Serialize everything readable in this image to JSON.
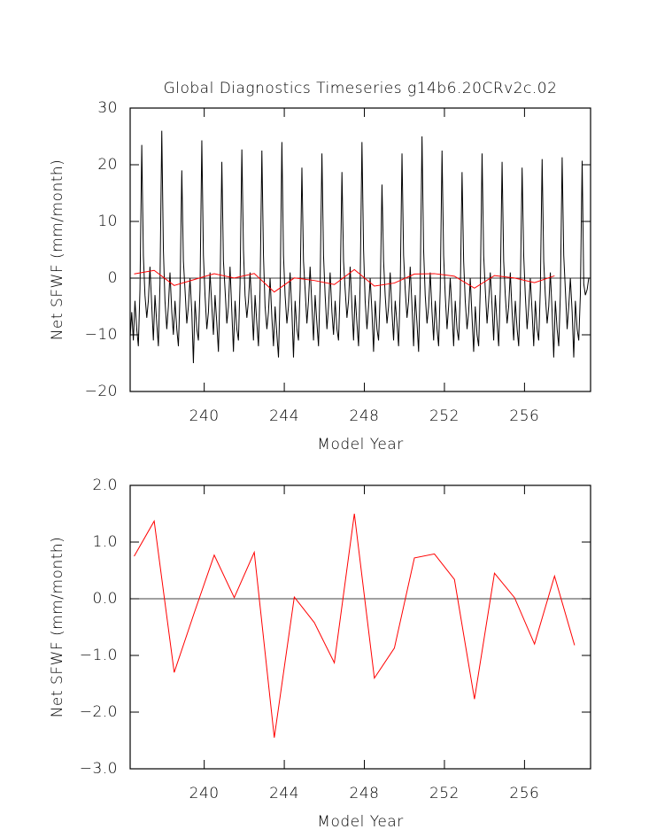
{
  "chart_data": [
    {
      "type": "line",
      "title": "Global Diagnostics Timeseries g14b6.20CRv2c.02",
      "xlabel": "Model Year",
      "ylabel": "Net SFWF (mm/month)",
      "xlim": [
        236.3,
        259.3
      ],
      "ylim": [
        -20,
        30
      ],
      "xticks": [
        240,
        244,
        248,
        252,
        256
      ],
      "yticks": [
        {
          "value": -20,
          "label": "−20"
        },
        {
          "value": -10,
          "label": "−10"
        },
        0,
        10,
        20,
        30
      ],
      "reference_line": 0,
      "series": [
        {
          "color": "#000000",
          "x": [
            236.29,
            236.38,
            236.46,
            236.54,
            236.63,
            236.71,
            236.79,
            236.88,
            236.96,
            237.04,
            237.13,
            237.21,
            237.29,
            237.38,
            237.46,
            237.54,
            237.63,
            237.71,
            237.79,
            237.88,
            237.96,
            238.04,
            238.13,
            238.21,
            238.29,
            238.38,
            238.46,
            238.54,
            238.63,
            238.71,
            238.79,
            238.88,
            238.96,
            239.04,
            239.13,
            239.21,
            239.29,
            239.38,
            239.46,
            239.54,
            239.63,
            239.71,
            239.79,
            239.88,
            239.96,
            240.04,
            240.13,
            240.21,
            240.29,
            240.38,
            240.46,
            240.54,
            240.63,
            240.71,
            240.79,
            240.88,
            240.96,
            241.04,
            241.13,
            241.21,
            241.29,
            241.38,
            241.46,
            241.54,
            241.63,
            241.71,
            241.79,
            241.88,
            241.96,
            242.04,
            242.13,
            242.21,
            242.29,
            242.38,
            242.46,
            242.54,
            242.63,
            242.71,
            242.79,
            242.88,
            242.96,
            243.04,
            243.13,
            243.21,
            243.29,
            243.38,
            243.46,
            243.54,
            243.63,
            243.71,
            243.79,
            243.88,
            243.96,
            244.04,
            244.13,
            244.21,
            244.29,
            244.38,
            244.46,
            244.54,
            244.63,
            244.71,
            244.79,
            244.88,
            244.96,
            245.04,
            245.13,
            245.21,
            245.29,
            245.38,
            245.46,
            245.54,
            245.63,
            245.71,
            245.79,
            245.88,
            245.96,
            246.04,
            246.13,
            246.21,
            246.29,
            246.38,
            246.46,
            246.54,
            246.63,
            246.71,
            246.79,
            246.88,
            246.96,
            247.04,
            247.13,
            247.21,
            247.29,
            247.38,
            247.46,
            247.54,
            247.63,
            247.71,
            247.79,
            247.88,
            247.96,
            248.04,
            248.13,
            248.21,
            248.29,
            248.38,
            248.46,
            248.54,
            248.63,
            248.71,
            248.79,
            248.88,
            248.96,
            249.04,
            249.13,
            249.21,
            249.29,
            249.38,
            249.46,
            249.54,
            249.63,
            249.71,
            249.79,
            249.88,
            249.96,
            250.04,
            250.13,
            250.21,
            250.29,
            250.38,
            250.46,
            250.54,
            250.63,
            250.71,
            250.79,
            250.88,
            250.96,
            251.04,
            251.13,
            251.21,
            251.29,
            251.38,
            251.46,
            251.54,
            251.63,
            251.71,
            251.79,
            251.88,
            251.96,
            252.04,
            252.13,
            252.21,
            252.29,
            252.38,
            252.46,
            252.54,
            252.63,
            252.71,
            252.79,
            252.88,
            252.96,
            253.04,
            253.13,
            253.21,
            253.29,
            253.38,
            253.46,
            253.54,
            253.63,
            253.71,
            253.79,
            253.88,
            253.96,
            254.04,
            254.13,
            254.21,
            254.29,
            254.38,
            254.46,
            254.54,
            254.63,
            254.71,
            254.79,
            254.88,
            254.96,
            255.04,
            255.13,
            255.21,
            255.29,
            255.38,
            255.46,
            255.54,
            255.63,
            255.71,
            255.79,
            255.88,
            255.96,
            256.04,
            256.13,
            256.21,
            256.29,
            256.38,
            256.46,
            256.54,
            256.63,
            256.71,
            256.79,
            256.88,
            256.96,
            257.04,
            257.13,
            257.21,
            257.29,
            257.38,
            257.46,
            257.54,
            257.63,
            257.71,
            257.79,
            257.88,
            257.96,
            258.04,
            258.13,
            258.21,
            258.29,
            258.38,
            258.46,
            258.54,
            258.63,
            258.71,
            258.79,
            258.88,
            258.96,
            259.04,
            259.13,
            259.21
          ],
          "values": [
            -11,
            -6,
            -11,
            -4,
            -9,
            -12,
            -2,
            23.5,
            4,
            -3,
            -7,
            -4,
            2,
            -5,
            -11,
            -3,
            -8,
            -12,
            -1,
            26,
            5,
            -4,
            -9,
            -5,
            1,
            -6,
            -10,
            -4,
            -9,
            -12,
            -3,
            19,
            3,
            -2,
            -8,
            -5,
            0,
            -6,
            -15,
            -4,
            -9,
            -11,
            -2,
            24.3,
            4,
            -3,
            -9,
            -6,
            1,
            -5,
            -10,
            -3,
            -8,
            -13,
            -2,
            20.5,
            3,
            -2,
            -8,
            -5,
            2,
            -6,
            -13,
            -4,
            -9,
            -11,
            -1,
            22.7,
            5,
            -3,
            -7,
            -4,
            1,
            -5,
            -11,
            -3,
            -8,
            -12,
            -2,
            22.5,
            4,
            -5,
            -9,
            -6,
            0,
            -7,
            -12,
            -5,
            -10,
            -14,
            -3,
            24,
            4,
            -3,
            -8,
            -5,
            1,
            -6,
            -14,
            -4,
            -9,
            -11,
            -2,
            19.5,
            3,
            -2,
            -8,
            -4,
            2,
            -5,
            -11,
            -3,
            -8,
            -12,
            -1,
            22,
            4,
            -3,
            -9,
            -5,
            1,
            -6,
            -10,
            -4,
            -9,
            -11,
            -2,
            18.7,
            3,
            -2,
            -7,
            -4,
            2,
            -5,
            -11,
            -3,
            -8,
            -12,
            -1,
            24,
            5,
            -4,
            -9,
            -5,
            0,
            -6,
            -13,
            -4,
            -9,
            -11,
            -3,
            16.5,
            3,
            -3,
            -8,
            -5,
            1,
            -6,
            -11,
            -4,
            -8,
            -12,
            -2,
            22,
            4,
            -2,
            -7,
            -4,
            2,
            -5,
            -12,
            -3,
            -8,
            -13,
            -1,
            25,
            5,
            -3,
            -8,
            -5,
            1,
            -6,
            -11,
            -4,
            -9,
            -12,
            -2,
            22.5,
            4,
            -3,
            -9,
            -5,
            0,
            -6,
            -12,
            -4,
            -9,
            -11,
            -3,
            18.7,
            3,
            -4,
            -9,
            -6,
            0,
            -7,
            -13,
            -5,
            -10,
            -12,
            -2,
            22,
            4,
            -2,
            -8,
            -4,
            1,
            -5,
            -11,
            -3,
            -8,
            -12,
            -2,
            20.5,
            3,
            -3,
            -8,
            -5,
            1,
            -6,
            -11,
            -4,
            -9,
            -12,
            -2,
            19.5,
            4,
            -3,
            -9,
            -5,
            0,
            -6,
            -12,
            -4,
            -9,
            -11,
            -2,
            21,
            3,
            -3,
            -8,
            -5,
            1,
            -6,
            -14,
            -4,
            -9,
            -12,
            -3,
            21.3,
            4,
            -2,
            -9,
            -5,
            0,
            -6,
            -14,
            -4,
            -9,
            -11,
            -3,
            20.7,
            -1,
            -3,
            -2,
            0
          ]
        },
        {
          "color": "#ff0000",
          "x": [
            236.5,
            237.5,
            238.5,
            239.5,
            240.5,
            241.5,
            242.5,
            243.5,
            244.5,
            245.5,
            246.5,
            247.5,
            248.5,
            249.5,
            250.5,
            251.5,
            252.5,
            253.5,
            254.5,
            255.5,
            256.5,
            257.5
          ],
          "values": [
            0.75,
            1.37,
            -1.3,
            -0.25,
            0.77,
            0.02,
            0.82,
            -2.45,
            0.03,
            -0.42,
            -1.13,
            1.5,
            -1.4,
            -0.87,
            0.72,
            0.79,
            0.34,
            -1.77,
            0.45,
            0.02,
            -0.8,
            0.4
          ]
        }
      ]
    },
    {
      "type": "line",
      "xlabel": "Model Year",
      "ylabel": "Net SFWF (mm/month)",
      "xlim": [
        236.3,
        259.3
      ],
      "ylim": [
        -3,
        2
      ],
      "xticks": [
        240,
        244,
        248,
        252,
        256
      ],
      "yticks": [
        {
          "value": -3,
          "label": "−3.0"
        },
        {
          "value": -2,
          "label": "−2.0"
        },
        {
          "value": -1,
          "label": "−1.0"
        },
        {
          "value": 0,
          "label": "0.0"
        },
        {
          "value": 1,
          "label": "1.0"
        },
        {
          "value": 2,
          "label": "2.0"
        }
      ],
      "reference_line": 0,
      "series": [
        {
          "color": "#ff0000",
          "x": [
            236.5,
            237.5,
            238.5,
            239.5,
            240.5,
            241.5,
            242.5,
            243.5,
            244.5,
            245.5,
            246.5,
            247.5,
            248.5,
            249.5,
            250.5,
            251.5,
            252.5,
            253.5,
            254.5,
            255.5,
            256.5,
            257.5,
            258.5
          ],
          "values": [
            0.75,
            1.37,
            -1.3,
            -0.25,
            0.77,
            0.02,
            0.82,
            -2.45,
            0.03,
            -0.42,
            -1.13,
            1.5,
            -1.4,
            -0.87,
            0.72,
            0.79,
            0.34,
            -1.77,
            0.45,
            0.02,
            -0.8,
            0.4,
            -0.82
          ]
        }
      ]
    }
  ]
}
